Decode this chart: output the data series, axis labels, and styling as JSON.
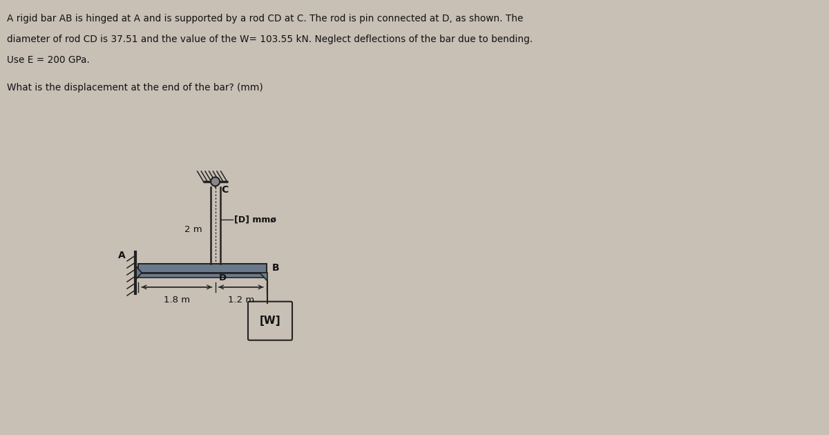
{
  "bg_color": "#c8bfb5",
  "line_color": "#222222",
  "bar_fill": "#8b7355",
  "text_color": "#111111",
  "title_lines": [
    "A rigid bar AB is hinged at A and is supported by a rod CD at C. The rod is pin connected at D, as shown. The",
    "diameter of rod CD is 37.51 and the value of the W= 103.55 kN. Neglect deflections of the bar due to bending.",
    "Use E = 200 GPa."
  ],
  "question": "What is the displacement at the end of the bar? (mm)",
  "label_C": "C",
  "label_D": "D",
  "label_A": "A",
  "label_B": "B",
  "label_W": "[W]",
  "label_2m": "2 m",
  "label_D_mm": "[D] mmø",
  "label_1_8": "1.8 m",
  "label_1_2": "1.2 m",
  "fig_width": 12.0,
  "fig_height": 6.3,
  "dpi": 100
}
